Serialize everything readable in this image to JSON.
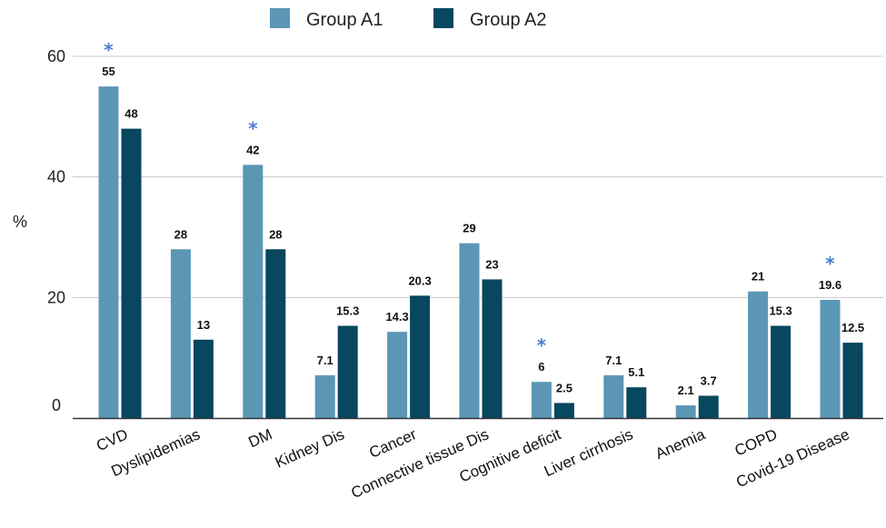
{
  "chart_data": {
    "type": "bar",
    "categories": [
      "CVD",
      "Dyslipidemias",
      "DM",
      "Kidney Dis",
      "Cancer",
      "Connective tissue Dis",
      "Cognitive deficit",
      "Liver cirrhosis",
      "Anemia",
      "COPD",
      "Covid-19 Disease"
    ],
    "series": [
      {
        "name": "Group A1",
        "color": "#5b97b5",
        "values": [
          55,
          28,
          42,
          7.1,
          14.3,
          29,
          6,
          7.1,
          2.1,
          21,
          19.6
        ],
        "labels": [
          "55",
          "28",
          "42",
          "7.1",
          "14.3",
          "29",
          "6",
          "7.1",
          "2.1",
          "21",
          "19.6"
        ]
      },
      {
        "name": "Group A2",
        "color": "#07475f",
        "values": [
          48,
          13,
          28,
          15.3,
          20.3,
          23,
          2.5,
          5.1,
          3.7,
          15.3,
          12.5
        ],
        "labels": [
          "48",
          "13",
          "28",
          "15.3",
          "20.3",
          "23",
          "2.5",
          "5.1",
          "3.7",
          "15.3",
          "12.5"
        ]
      }
    ],
    "significance_marker": "*",
    "significant_categories": [
      "CVD",
      "DM",
      "Cognitive deficit",
      "Covid-19 Disease"
    ],
    "marker_color": "#4a7fd0",
    "ylabel": "%",
    "yticks": [
      "0",
      "20",
      "40",
      "60"
    ],
    "ylim": [
      0,
      60
    ],
    "grid": true,
    "legend_position": "top-center"
  }
}
